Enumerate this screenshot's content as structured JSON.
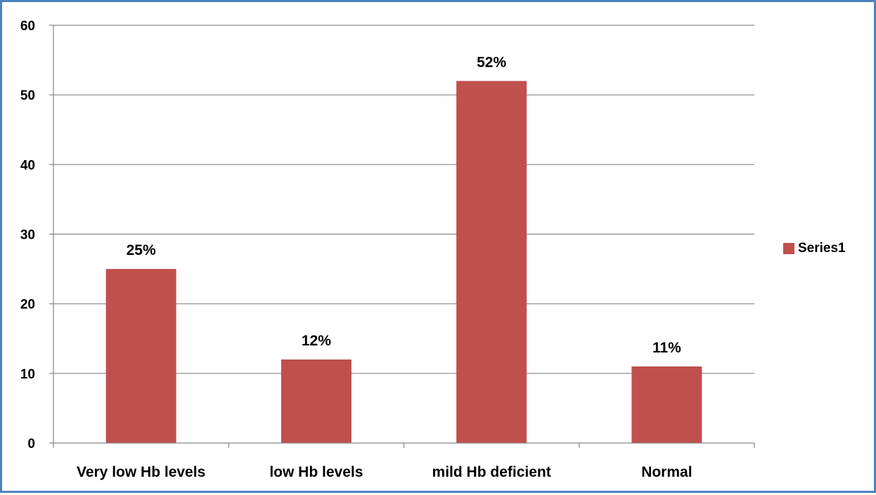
{
  "chart_data": {
    "type": "bar",
    "title": "",
    "xlabel": "",
    "ylabel": "",
    "categories": [
      "Very low Hb levels",
      "low Hb levels",
      "mild Hb deficient",
      "Normal"
    ],
    "series": [
      {
        "name": "Series1",
        "values": [
          25,
          12,
          52,
          11
        ],
        "data_labels": [
          "25%",
          "12%",
          "52%",
          "11%"
        ],
        "color": "#c0504d"
      }
    ],
    "ylim": [
      0,
      60
    ],
    "yticks": [
      "0",
      "10",
      "20",
      "30",
      "40",
      "50",
      "60"
    ],
    "grid": true,
    "legend": "right"
  },
  "colors": {
    "frame": "#4f81bd",
    "gridline": "#868686",
    "bar": "#c0504d"
  }
}
